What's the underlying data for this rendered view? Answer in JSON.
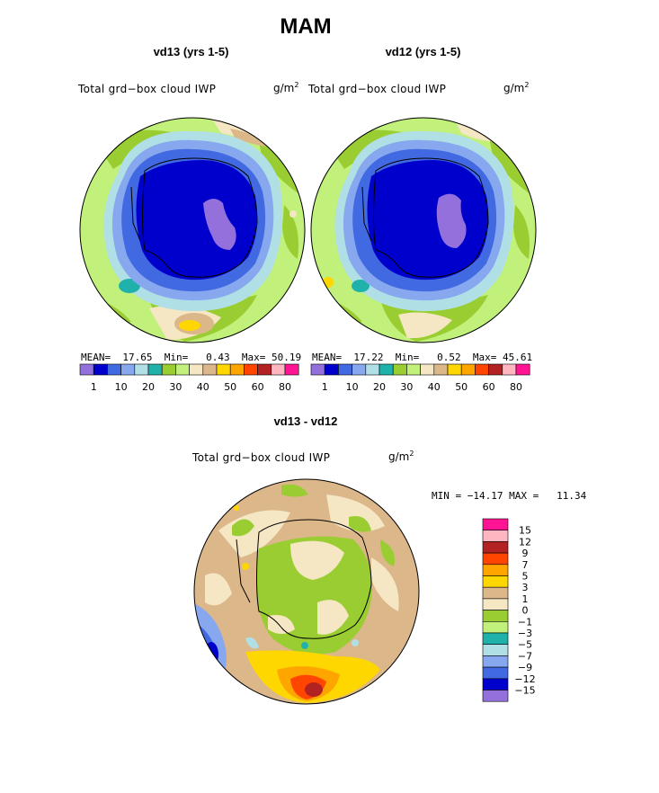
{
  "season": "MAM",
  "panels": [
    {
      "subtitle": "vd13 (yrs 1-5)",
      "field_label": "Total grd−box cloud IWP",
      "units_base": "g/m",
      "units_exp": "2",
      "stats": {
        "mean_label": "MEAN=",
        "mean": "17.65",
        "min_label": "Min=",
        "min": "0.43",
        "max_label": "Max=",
        "max": "50.19"
      }
    },
    {
      "subtitle": "vd12 (yrs 1-5)",
      "field_label": "Total grd−box cloud IWP",
      "units_base": "g/m",
      "units_exp": "2",
      "stats": {
        "mean_label": "MEAN=",
        "mean": "17.22",
        "min_label": "Min=",
        "min": "0.52",
        "max_label": "Max=",
        "max": "45.61"
      }
    }
  ],
  "colorbar_top": {
    "colors": [
      "#9370db",
      "#0000cd",
      "#4169e1",
      "#87a8ee",
      "#b0e0e6",
      "#20b2aa",
      "#9acd32",
      "#c1f07b",
      "#f5e6c4",
      "#dcb78a",
      "#ffd700",
      "#ffa500",
      "#ff4500",
      "#b22222",
      "#ffb6c1",
      "#ff1493"
    ],
    "labels": [
      "1",
      "10",
      "20",
      "30",
      "40",
      "50",
      "60",
      "80"
    ]
  },
  "diff": {
    "subtitle": "vd13 - vd12",
    "field_label": "Total grd−box cloud IWP",
    "units_base": "g/m",
    "units_exp": "2",
    "minmax": {
      "min_label": "MIN =",
      "min": "−14.17",
      "max_label": "MAX =",
      "max": "11.34"
    },
    "colorbar": {
      "colors": [
        "#ff1493",
        "#ffb6c1",
        "#b22222",
        "#ff4500",
        "#ffa500",
        "#ffd700",
        "#dcb78a",
        "#f5e6c4",
        "#9acd32",
        "#c1f07b",
        "#20b2aa",
        "#b0e0e6",
        "#87a8ee",
        "#4169e1",
        "#0000cd",
        "#9370db"
      ],
      "labels": [
        "15",
        "12",
        "9",
        "7",
        "5",
        "3",
        "1",
        "0",
        "−1",
        "−3",
        "−5",
        "−7",
        "−9",
        "−12",
        "−15"
      ]
    }
  }
}
